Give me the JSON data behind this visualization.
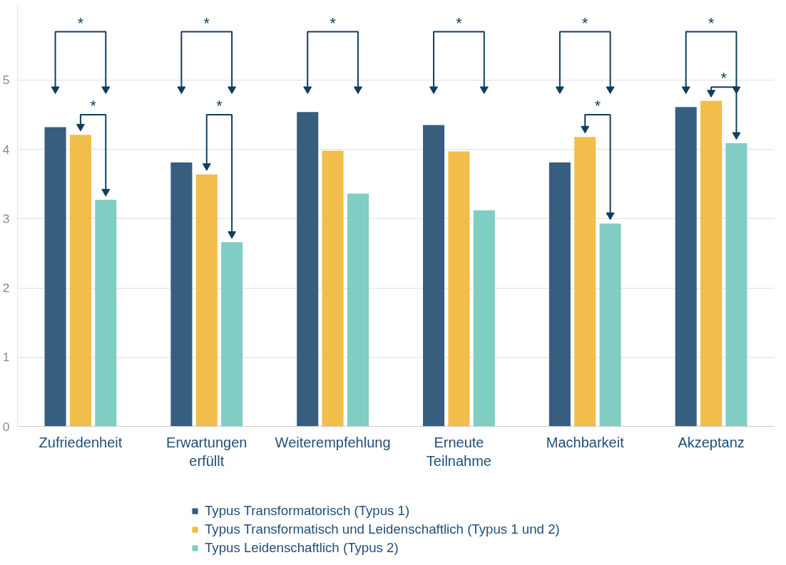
{
  "chart_data": {
    "type": "bar",
    "categories": [
      "Zufriedenheit",
      "Erwartungen\nerfüllt",
      "Weiterempfehlung",
      "Erneute\nTeilnahme",
      "Machbarkeit",
      "Akzeptanz"
    ],
    "series": [
      {
        "name": "Typus Transformatorisch (Typus 1)",
        "color": "#375d7f",
        "values": [
          4.32,
          3.81,
          4.54,
          4.35,
          3.81,
          4.61
        ]
      },
      {
        "name": "Typus Transformatisch und Leidenschaftlich (Typus 1 und 2)",
        "color": "#f2bd4a",
        "values": [
          4.21,
          3.64,
          3.98,
          3.97,
          4.18,
          4.7
        ]
      },
      {
        "name": "Typus Leidenschaftlich (Typus 2)",
        "color": "#80cdc4",
        "values": [
          3.27,
          2.66,
          3.36,
          3.12,
          2.93,
          4.09
        ]
      }
    ],
    "ylim": [
      0,
      6.1
    ],
    "yticks": [
      0,
      1,
      2,
      3,
      4,
      5
    ],
    "grid": "y",
    "legend": "bottom",
    "annotations": [
      "*",
      "*",
      "*",
      "*",
      "*",
      "*",
      "*",
      "*",
      "*",
      "*"
    ]
  }
}
